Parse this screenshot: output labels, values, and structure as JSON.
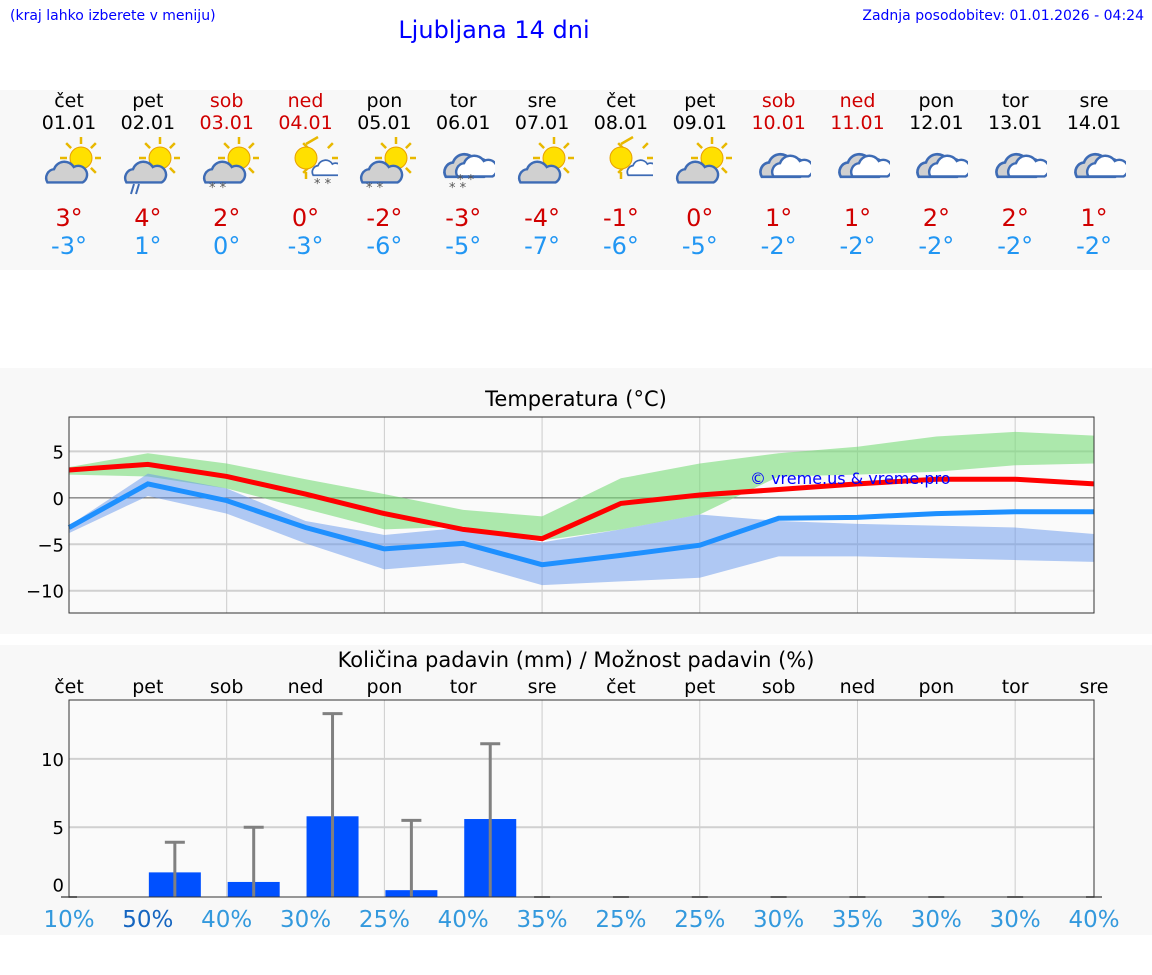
{
  "header": {
    "hint": "(kraj lahko izberete v meniju)",
    "title": "Ljubljana 14 dni",
    "updated": "Zadnja posodobitev: 01.01.2026 - 04:24"
  },
  "colors": {
    "max": "#ff0000",
    "min": "#1e90ff",
    "weekend": "#d00000",
    "bar": "#0050ff"
  },
  "days": [
    {
      "name": "čet",
      "date": "01.01",
      "weekend": false,
      "icon": "sun-cloud-icon",
      "hi": "3°",
      "lo": "-3°"
    },
    {
      "name": "pet",
      "date": "02.01",
      "weekend": false,
      "icon": "sun-cloud-rain-icon",
      "hi": "4°",
      "lo": "1°"
    },
    {
      "name": "sob",
      "date": "03.01",
      "weekend": true,
      "icon": "sun-cloud-snow-icon",
      "hi": "2°",
      "lo": "0°"
    },
    {
      "name": "ned",
      "date": "04.01",
      "weekend": true,
      "icon": "sun-small-cloud-snow-icon",
      "hi": "0°",
      "lo": "-3°"
    },
    {
      "name": "pon",
      "date": "05.01",
      "weekend": false,
      "icon": "sun-cloud-snow-icon",
      "hi": "-2°",
      "lo": "-6°"
    },
    {
      "name": "tor",
      "date": "06.01",
      "weekend": false,
      "icon": "clouds-snow-icon",
      "hi": "-3°",
      "lo": "-5°"
    },
    {
      "name": "sre",
      "date": "07.01",
      "weekend": false,
      "icon": "sun-cloud-icon",
      "hi": "-4°",
      "lo": "-7°"
    },
    {
      "name": "čet",
      "date": "08.01",
      "weekend": false,
      "icon": "sun-small-cloud-icon",
      "hi": "-1°",
      "lo": "-6°"
    },
    {
      "name": "pet",
      "date": "09.01",
      "weekend": false,
      "icon": "sun-cloud-icon",
      "hi": "0°",
      "lo": "-5°"
    },
    {
      "name": "sob",
      "date": "10.01",
      "weekend": true,
      "icon": "clouds-icon",
      "hi": "1°",
      "lo": "-2°"
    },
    {
      "name": "ned",
      "date": "11.01",
      "weekend": true,
      "icon": "clouds-icon",
      "hi": "1°",
      "lo": "-2°"
    },
    {
      "name": "pon",
      "date": "12.01",
      "weekend": false,
      "icon": "clouds-icon",
      "hi": "2°",
      "lo": "-2°"
    },
    {
      "name": "tor",
      "date": "13.01",
      "weekend": false,
      "icon": "clouds-icon",
      "hi": "2°",
      "lo": "-2°"
    },
    {
      "name": "sre",
      "date": "14.01",
      "weekend": false,
      "icon": "clouds-icon",
      "hi": "1°",
      "lo": "-2°"
    }
  ],
  "chart_data": [
    {
      "type": "line",
      "title": "Temperatura (°C)",
      "ylim": [
        -12.4,
        8.7
      ],
      "yticks": [
        5,
        0,
        -5,
        -10
      ],
      "ytick_labels": [
        "5",
        "0",
        "−5",
        "−10"
      ],
      "watermark": "© vreme.us & vreme.pro",
      "series": [
        {
          "name": "max",
          "values": [
            3.0,
            3.6,
            2.3,
            0.4,
            -1.7,
            -3.4,
            -4.4,
            -0.6,
            0.3,
            0.9,
            1.5,
            2.0,
            2.0,
            1.5
          ]
        },
        {
          "name": "min",
          "values": [
            -3.2,
            1.5,
            -0.3,
            -3.2,
            -5.5,
            -4.9,
            -7.2,
            -6.2,
            -5.1,
            -2.2,
            -2.1,
            -1.7,
            -1.5,
            -1.5
          ]
        }
      ],
      "bands": [
        {
          "name": "max-range",
          "upper": [
            3.3,
            4.8,
            3.7,
            2.0,
            0.4,
            -1.3,
            -2.0,
            2.1,
            3.7,
            4.8,
            5.5,
            6.6,
            7.1,
            6.7
          ],
          "lower": [
            2.5,
            2.3,
            1.0,
            -1.2,
            -3.4,
            -3.1,
            -4.6,
            -3.4,
            -1.8,
            2.3,
            2.5,
            2.8,
            3.5,
            3.7
          ]
        },
        {
          "name": "min-range",
          "upper": [
            -3.0,
            2.6,
            1.0,
            -2.5,
            -4.0,
            -3.2,
            -4.8,
            -3.4,
            -1.8,
            -2.5,
            -2.8,
            -3.0,
            -3.2,
            -3.9
          ],
          "lower": [
            -3.8,
            0.2,
            -1.7,
            -4.9,
            -7.7,
            -7.0,
            -9.4,
            -9.0,
            -8.6,
            -6.3,
            -6.3,
            -6.5,
            -6.7,
            -6.9
          ]
        }
      ]
    },
    {
      "type": "bar",
      "title": "Količina padavin (mm) / Možnost padavin (%)",
      "ylim": [
        -0.1,
        14.3
      ],
      "yticks": [
        0,
        5,
        10
      ],
      "ytick_labels": [
        "0",
        "5",
        "10"
      ],
      "categories": [
        "čet",
        "pet",
        "sob",
        "ned",
        "pon",
        "tor",
        "sre",
        "čet",
        "pet",
        "sob",
        "ned",
        "pon",
        "tor",
        "sre"
      ],
      "values": [
        0,
        1.7,
        1.0,
        5.8,
        0.4,
        5.6,
        0,
        0,
        0,
        0,
        0,
        0,
        0,
        0
      ],
      "error_max": [
        0,
        3.9,
        5.0,
        13.3,
        5.5,
        11.1,
        0,
        0,
        0,
        0,
        0,
        0,
        0,
        0
      ],
      "chance": [
        "10%",
        "50%",
        "40%",
        "30%",
        "25%",
        "40%",
        "35%",
        "25%",
        "25%",
        "30%",
        "35%",
        "30%",
        "30%",
        "40%"
      ]
    }
  ]
}
